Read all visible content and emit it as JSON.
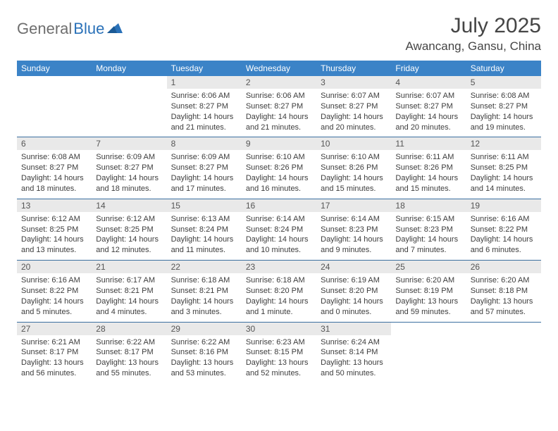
{
  "brand": {
    "name1": "General",
    "name2": "Blue"
  },
  "title": "July 2025",
  "location": "Awancang, Gansu, China",
  "weekday_bg": "#3b83c7",
  "weekdays": [
    "Sunday",
    "Monday",
    "Tuesday",
    "Wednesday",
    "Thursday",
    "Friday",
    "Saturday"
  ],
  "weeks": [
    [
      {
        "n": "",
        "sr": "",
        "ss": "",
        "dl1": "",
        "dl2": ""
      },
      {
        "n": "",
        "sr": "",
        "ss": "",
        "dl1": "",
        "dl2": ""
      },
      {
        "n": "1",
        "sr": "Sunrise: 6:06 AM",
        "ss": "Sunset: 8:27 PM",
        "dl1": "Daylight: 14 hours",
        "dl2": "and 21 minutes."
      },
      {
        "n": "2",
        "sr": "Sunrise: 6:06 AM",
        "ss": "Sunset: 8:27 PM",
        "dl1": "Daylight: 14 hours",
        "dl2": "and 21 minutes."
      },
      {
        "n": "3",
        "sr": "Sunrise: 6:07 AM",
        "ss": "Sunset: 8:27 PM",
        "dl1": "Daylight: 14 hours",
        "dl2": "and 20 minutes."
      },
      {
        "n": "4",
        "sr": "Sunrise: 6:07 AM",
        "ss": "Sunset: 8:27 PM",
        "dl1": "Daylight: 14 hours",
        "dl2": "and 20 minutes."
      },
      {
        "n": "5",
        "sr": "Sunrise: 6:08 AM",
        "ss": "Sunset: 8:27 PM",
        "dl1": "Daylight: 14 hours",
        "dl2": "and 19 minutes."
      }
    ],
    [
      {
        "n": "6",
        "sr": "Sunrise: 6:08 AM",
        "ss": "Sunset: 8:27 PM",
        "dl1": "Daylight: 14 hours",
        "dl2": "and 18 minutes."
      },
      {
        "n": "7",
        "sr": "Sunrise: 6:09 AM",
        "ss": "Sunset: 8:27 PM",
        "dl1": "Daylight: 14 hours",
        "dl2": "and 18 minutes."
      },
      {
        "n": "8",
        "sr": "Sunrise: 6:09 AM",
        "ss": "Sunset: 8:27 PM",
        "dl1": "Daylight: 14 hours",
        "dl2": "and 17 minutes."
      },
      {
        "n": "9",
        "sr": "Sunrise: 6:10 AM",
        "ss": "Sunset: 8:26 PM",
        "dl1": "Daylight: 14 hours",
        "dl2": "and 16 minutes."
      },
      {
        "n": "10",
        "sr": "Sunrise: 6:10 AM",
        "ss": "Sunset: 8:26 PM",
        "dl1": "Daylight: 14 hours",
        "dl2": "and 15 minutes."
      },
      {
        "n": "11",
        "sr": "Sunrise: 6:11 AM",
        "ss": "Sunset: 8:26 PM",
        "dl1": "Daylight: 14 hours",
        "dl2": "and 15 minutes."
      },
      {
        "n": "12",
        "sr": "Sunrise: 6:11 AM",
        "ss": "Sunset: 8:25 PM",
        "dl1": "Daylight: 14 hours",
        "dl2": "and 14 minutes."
      }
    ],
    [
      {
        "n": "13",
        "sr": "Sunrise: 6:12 AM",
        "ss": "Sunset: 8:25 PM",
        "dl1": "Daylight: 14 hours",
        "dl2": "and 13 minutes."
      },
      {
        "n": "14",
        "sr": "Sunrise: 6:12 AM",
        "ss": "Sunset: 8:25 PM",
        "dl1": "Daylight: 14 hours",
        "dl2": "and 12 minutes."
      },
      {
        "n": "15",
        "sr": "Sunrise: 6:13 AM",
        "ss": "Sunset: 8:24 PM",
        "dl1": "Daylight: 14 hours",
        "dl2": "and 11 minutes."
      },
      {
        "n": "16",
        "sr": "Sunrise: 6:14 AM",
        "ss": "Sunset: 8:24 PM",
        "dl1": "Daylight: 14 hours",
        "dl2": "and 10 minutes."
      },
      {
        "n": "17",
        "sr": "Sunrise: 6:14 AM",
        "ss": "Sunset: 8:23 PM",
        "dl1": "Daylight: 14 hours",
        "dl2": "and 9 minutes."
      },
      {
        "n": "18",
        "sr": "Sunrise: 6:15 AM",
        "ss": "Sunset: 8:23 PM",
        "dl1": "Daylight: 14 hours",
        "dl2": "and 7 minutes."
      },
      {
        "n": "19",
        "sr": "Sunrise: 6:16 AM",
        "ss": "Sunset: 8:22 PM",
        "dl1": "Daylight: 14 hours",
        "dl2": "and 6 minutes."
      }
    ],
    [
      {
        "n": "20",
        "sr": "Sunrise: 6:16 AM",
        "ss": "Sunset: 8:22 PM",
        "dl1": "Daylight: 14 hours",
        "dl2": "and 5 minutes."
      },
      {
        "n": "21",
        "sr": "Sunrise: 6:17 AM",
        "ss": "Sunset: 8:21 PM",
        "dl1": "Daylight: 14 hours",
        "dl2": "and 4 minutes."
      },
      {
        "n": "22",
        "sr": "Sunrise: 6:18 AM",
        "ss": "Sunset: 8:21 PM",
        "dl1": "Daylight: 14 hours",
        "dl2": "and 3 minutes."
      },
      {
        "n": "23",
        "sr": "Sunrise: 6:18 AM",
        "ss": "Sunset: 8:20 PM",
        "dl1": "Daylight: 14 hours",
        "dl2": "and 1 minute."
      },
      {
        "n": "24",
        "sr": "Sunrise: 6:19 AM",
        "ss": "Sunset: 8:20 PM",
        "dl1": "Daylight: 14 hours",
        "dl2": "and 0 minutes."
      },
      {
        "n": "25",
        "sr": "Sunrise: 6:20 AM",
        "ss": "Sunset: 8:19 PM",
        "dl1": "Daylight: 13 hours",
        "dl2": "and 59 minutes."
      },
      {
        "n": "26",
        "sr": "Sunrise: 6:20 AM",
        "ss": "Sunset: 8:18 PM",
        "dl1": "Daylight: 13 hours",
        "dl2": "and 57 minutes."
      }
    ],
    [
      {
        "n": "27",
        "sr": "Sunrise: 6:21 AM",
        "ss": "Sunset: 8:17 PM",
        "dl1": "Daylight: 13 hours",
        "dl2": "and 56 minutes."
      },
      {
        "n": "28",
        "sr": "Sunrise: 6:22 AM",
        "ss": "Sunset: 8:17 PM",
        "dl1": "Daylight: 13 hours",
        "dl2": "and 55 minutes."
      },
      {
        "n": "29",
        "sr": "Sunrise: 6:22 AM",
        "ss": "Sunset: 8:16 PM",
        "dl1": "Daylight: 13 hours",
        "dl2": "and 53 minutes."
      },
      {
        "n": "30",
        "sr": "Sunrise: 6:23 AM",
        "ss": "Sunset: 8:15 PM",
        "dl1": "Daylight: 13 hours",
        "dl2": "and 52 minutes."
      },
      {
        "n": "31",
        "sr": "Sunrise: 6:24 AM",
        "ss": "Sunset: 8:14 PM",
        "dl1": "Daylight: 13 hours",
        "dl2": "and 50 minutes."
      },
      {
        "n": "",
        "sr": "",
        "ss": "",
        "dl1": "",
        "dl2": ""
      },
      {
        "n": "",
        "sr": "",
        "ss": "",
        "dl1": "",
        "dl2": ""
      }
    ]
  ]
}
